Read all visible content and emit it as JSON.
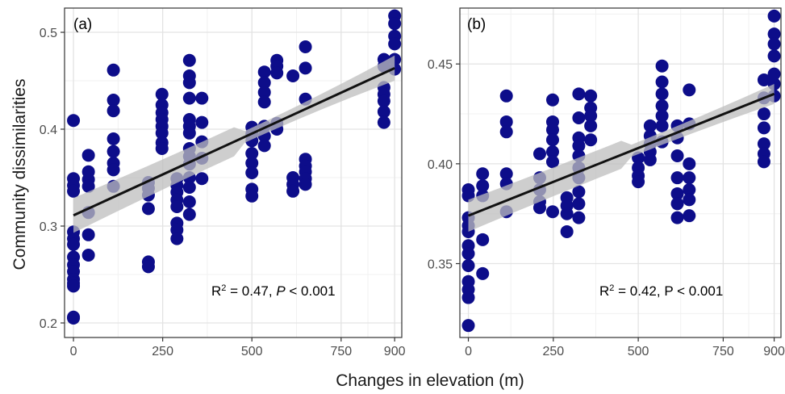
{
  "figure": {
    "ylabel": "Community dissimilarities",
    "xlabel": "Changes in elevation (m)"
  },
  "colors": {
    "point": "#0d0d8a",
    "line": "#111111",
    "ribbon": "#bdbdbd",
    "grid_major": "#e3e3e3",
    "grid_minor": "#f1f1f1",
    "border": "#333333"
  },
  "chart_data": [
    {
      "type": "scatter",
      "panel_label": "(a)",
      "annotation": {
        "r2_prefix": "R",
        "r2_sup": "2",
        "r2_value": " = 0.47, ",
        "p_label": "P",
        "p_value": " < 0.001"
      },
      "xlim": [
        -25,
        920
      ],
      "ylim": [
        0.185,
        0.525
      ],
      "xticks": [
        0,
        250,
        500,
        750,
        900
      ],
      "xtick_labels": [
        "0",
        "250",
        "500",
        "750",
        "900"
      ],
      "yticks": [
        0.2,
        0.3,
        0.4,
        0.5
      ],
      "ytick_labels": [
        "0.2",
        "0.3",
        "0.4",
        "0.5"
      ],
      "grid": true,
      "regression": {
        "x": [
          0,
          900
        ],
        "y": [
          0.311,
          0.463
        ],
        "ci_half": [
          0.009,
          0.006,
          0.013
        ]
      },
      "points": [
        [
          0,
          0.409
        ],
        [
          0,
          0.349
        ],
        [
          0,
          0.342
        ],
        [
          0,
          0.336
        ],
        [
          0,
          0.294
        ],
        [
          0,
          0.287
        ],
        [
          0,
          0.281
        ],
        [
          0,
          0.268
        ],
        [
          0,
          0.26
        ],
        [
          0,
          0.253
        ],
        [
          0,
          0.245
        ],
        [
          0,
          0.241
        ],
        [
          0,
          0.238
        ],
        [
          0,
          0.206
        ],
        [
          0,
          0.205
        ],
        [
          42,
          0.373
        ],
        [
          42,
          0.356
        ],
        [
          42,
          0.348
        ],
        [
          42,
          0.341
        ],
        [
          42,
          0.314
        ],
        [
          42,
          0.291
        ],
        [
          42,
          0.27
        ],
        [
          112,
          0.461
        ],
        [
          112,
          0.43
        ],
        [
          112,
          0.419
        ],
        [
          112,
          0.39
        ],
        [
          112,
          0.377
        ],
        [
          112,
          0.365
        ],
        [
          112,
          0.358
        ],
        [
          112,
          0.341
        ],
        [
          210,
          0.345
        ],
        [
          210,
          0.339
        ],
        [
          210,
          0.332
        ],
        [
          210,
          0.318
        ],
        [
          210,
          0.263
        ],
        [
          210,
          0.258
        ],
        [
          248,
          0.436
        ],
        [
          248,
          0.425
        ],
        [
          248,
          0.417
        ],
        [
          248,
          0.41
        ],
        [
          248,
          0.403
        ],
        [
          248,
          0.396
        ],
        [
          248,
          0.386
        ],
        [
          248,
          0.38
        ],
        [
          290,
          0.349
        ],
        [
          290,
          0.342
        ],
        [
          290,
          0.335
        ],
        [
          290,
          0.327
        ],
        [
          290,
          0.32
        ],
        [
          290,
          0.303
        ],
        [
          290,
          0.296
        ],
        [
          290,
          0.287
        ],
        [
          325,
          0.471
        ],
        [
          325,
          0.455
        ],
        [
          325,
          0.448
        ],
        [
          325,
          0.432
        ],
        [
          325,
          0.41
        ],
        [
          325,
          0.403
        ],
        [
          325,
          0.396
        ],
        [
          325,
          0.38
        ],
        [
          325,
          0.372
        ],
        [
          325,
          0.364
        ],
        [
          325,
          0.35
        ],
        [
          325,
          0.34
        ],
        [
          325,
          0.325
        ],
        [
          325,
          0.312
        ],
        [
          360,
          0.432
        ],
        [
          360,
          0.407
        ],
        [
          360,
          0.387
        ],
        [
          360,
          0.37
        ],
        [
          360,
          0.349
        ],
        [
          500,
          0.402
        ],
        [
          500,
          0.395
        ],
        [
          500,
          0.388
        ],
        [
          500,
          0.375
        ],
        [
          500,
          0.365
        ],
        [
          500,
          0.355
        ],
        [
          500,
          0.338
        ],
        [
          500,
          0.331
        ],
        [
          535,
          0.459
        ],
        [
          535,
          0.448
        ],
        [
          535,
          0.438
        ],
        [
          535,
          0.428
        ],
        [
          535,
          0.403
        ],
        [
          535,
          0.393
        ],
        [
          535,
          0.383
        ],
        [
          570,
          0.471
        ],
        [
          570,
          0.465
        ],
        [
          570,
          0.458
        ],
        [
          570,
          0.406
        ],
        [
          570,
          0.4
        ],
        [
          615,
          0.455
        ],
        [
          615,
          0.35
        ],
        [
          615,
          0.343
        ],
        [
          615,
          0.336
        ],
        [
          650,
          0.485
        ],
        [
          650,
          0.463
        ],
        [
          650,
          0.431
        ],
        [
          650,
          0.369
        ],
        [
          650,
          0.362
        ],
        [
          650,
          0.356
        ],
        [
          650,
          0.349
        ],
        [
          650,
          0.343
        ],
        [
          870,
          0.472
        ],
        [
          870,
          0.465
        ],
        [
          870,
          0.443
        ],
        [
          870,
          0.436
        ],
        [
          870,
          0.429
        ],
        [
          870,
          0.418
        ],
        [
          870,
          0.407
        ],
        [
          900,
          0.517
        ],
        [
          900,
          0.509
        ],
        [
          900,
          0.496
        ],
        [
          900,
          0.488
        ],
        [
          900,
          0.472
        ],
        [
          900,
          0.462
        ]
      ]
    },
    {
      "type": "scatter",
      "panel_label": "(b)",
      "annotation": {
        "r2_prefix": "R",
        "r2_sup": "2",
        "r2_value": " = 0.42, ",
        "p_label": "P",
        "p_value": " < 0.001"
      },
      "xlim": [
        -25,
        920
      ],
      "ylim": [
        0.313,
        0.478
      ],
      "xticks": [
        0,
        250,
        500,
        750,
        900
      ],
      "xtick_labels": [
        "0",
        "250",
        "500",
        "750",
        "900"
      ],
      "yticks": [
        0.35,
        0.4,
        0.45
      ],
      "ytick_labels": [
        "0.35",
        "0.40",
        "0.45"
      ],
      "grid": true,
      "regression": {
        "x": [
          0,
          900
        ],
        "y": [
          0.374,
          0.435
        ],
        "ci_half": [
          0.004,
          0.003,
          0.005
        ]
      },
      "points": [
        [
          0,
          0.387
        ],
        [
          0,
          0.384
        ],
        [
          0,
          0.373
        ],
        [
          0,
          0.369
        ],
        [
          0,
          0.366
        ],
        [
          0,
          0.359
        ],
        [
          0,
          0.355
        ],
        [
          0,
          0.349
        ],
        [
          0,
          0.341
        ],
        [
          0,
          0.337
        ],
        [
          0,
          0.333
        ],
        [
          0,
          0.319
        ],
        [
          42,
          0.395
        ],
        [
          42,
          0.389
        ],
        [
          42,
          0.384
        ],
        [
          42,
          0.362
        ],
        [
          42,
          0.345
        ],
        [
          112,
          0.434
        ],
        [
          112,
          0.421
        ],
        [
          112,
          0.416
        ],
        [
          112,
          0.395
        ],
        [
          112,
          0.39
        ],
        [
          112,
          0.376
        ],
        [
          210,
          0.405
        ],
        [
          210,
          0.393
        ],
        [
          210,
          0.387
        ],
        [
          210,
          0.381
        ],
        [
          210,
          0.378
        ],
        [
          248,
          0.432
        ],
        [
          248,
          0.421
        ],
        [
          248,
          0.417
        ],
        [
          248,
          0.412
        ],
        [
          248,
          0.406
        ],
        [
          248,
          0.401
        ],
        [
          248,
          0.376
        ],
        [
          290,
          0.383
        ],
        [
          290,
          0.379
        ],
        [
          290,
          0.375
        ],
        [
          290,
          0.366
        ],
        [
          325,
          0.435
        ],
        [
          325,
          0.423
        ],
        [
          325,
          0.413
        ],
        [
          325,
          0.409
        ],
        [
          325,
          0.404
        ],
        [
          325,
          0.398
        ],
        [
          325,
          0.393
        ],
        [
          325,
          0.386
        ],
        [
          325,
          0.38
        ],
        [
          325,
          0.373
        ],
        [
          360,
          0.434
        ],
        [
          360,
          0.428
        ],
        [
          360,
          0.424
        ],
        [
          360,
          0.419
        ],
        [
          360,
          0.412
        ],
        [
          500,
          0.403
        ],
        [
          500,
          0.398
        ],
        [
          500,
          0.394
        ],
        [
          500,
          0.391
        ],
        [
          535,
          0.419
        ],
        [
          535,
          0.414
        ],
        [
          535,
          0.41
        ],
        [
          535,
          0.406
        ],
        [
          535,
          0.402
        ],
        [
          570,
          0.449
        ],
        [
          570,
          0.441
        ],
        [
          570,
          0.435
        ],
        [
          570,
          0.429
        ],
        [
          570,
          0.424
        ],
        [
          570,
          0.419
        ],
        [
          570,
          0.411
        ],
        [
          615,
          0.419
        ],
        [
          615,
          0.413
        ],
        [
          615,
          0.404
        ],
        [
          615,
          0.393
        ],
        [
          615,
          0.385
        ],
        [
          615,
          0.38
        ],
        [
          615,
          0.373
        ],
        [
          650,
          0.437
        ],
        [
          650,
          0.42
        ],
        [
          650,
          0.4
        ],
        [
          650,
          0.393
        ],
        [
          650,
          0.387
        ],
        [
          650,
          0.382
        ],
        [
          650,
          0.374
        ],
        [
          870,
          0.442
        ],
        [
          870,
          0.433
        ],
        [
          870,
          0.425
        ],
        [
          870,
          0.418
        ],
        [
          870,
          0.41
        ],
        [
          870,
          0.405
        ],
        [
          870,
          0.401
        ],
        [
          900,
          0.474
        ],
        [
          900,
          0.465
        ],
        [
          900,
          0.46
        ],
        [
          900,
          0.454
        ],
        [
          900,
          0.445
        ],
        [
          900,
          0.44
        ],
        [
          900,
          0.434
        ]
      ]
    }
  ]
}
